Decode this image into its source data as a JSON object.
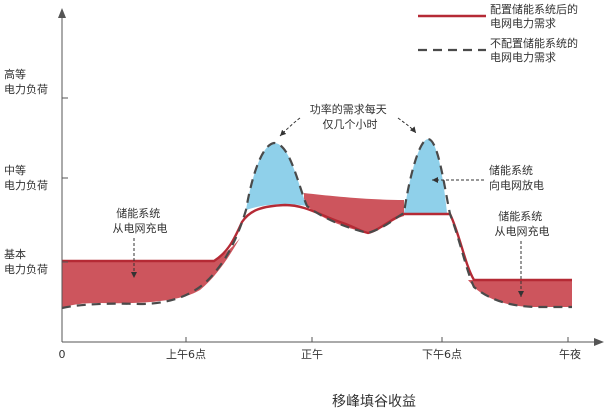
{
  "legend": {
    "with_storage": [
      "配置储能系统后的",
      "电网电力需求"
    ],
    "without_storage": [
      "不配置储能系统的",
      "电网电力需求"
    ]
  },
  "y_levels": {
    "high": [
      "高等",
      "电力负荷"
    ],
    "mid": [
      "中等",
      "电力负荷"
    ],
    "base": [
      "基本",
      "电力负荷"
    ]
  },
  "x_ticks": [
    "0",
    "上午6点",
    "正午",
    "下午6点",
    "午夜"
  ],
  "annotations": {
    "peak_demand": [
      "功率的需求每天",
      "仅几个小时"
    ],
    "discharge": [
      "储能系统",
      "向电网放电"
    ],
    "charge_left": [
      "储能系统",
      "从电网充电"
    ],
    "charge_right": [
      "储能系统",
      "从电网充电"
    ]
  },
  "caption": "移峰填谷收益",
  "colors": {
    "with_storage_line": "#b52a35",
    "without_storage_line": "#4a4a4a",
    "charge_fill": "#c9474f",
    "discharge_fill": "#8fd0ea",
    "axis": "#555555"
  }
}
